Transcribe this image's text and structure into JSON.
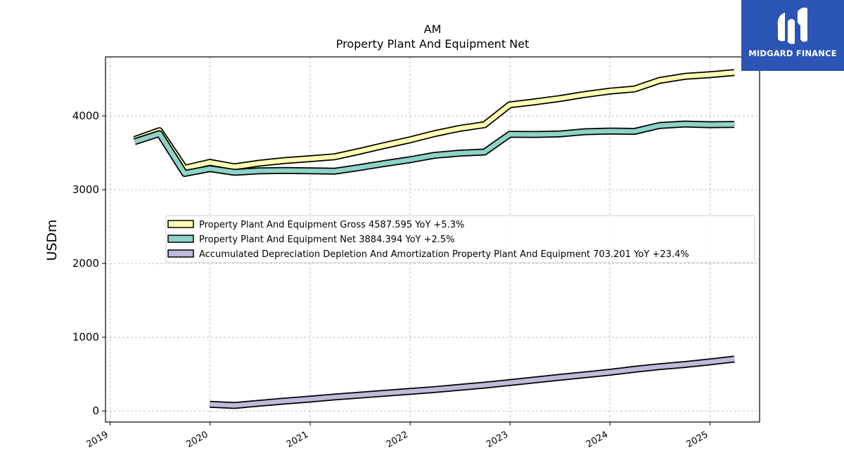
{
  "logo": {
    "text": "MIDGARD FINANCE",
    "icon": "midgard-logo-icon",
    "background": "#2b55b4"
  },
  "chart_data": {
    "type": "line",
    "title": "AM",
    "subtitle": "Property Plant And Equipment Net",
    "xlabel": "",
    "ylabel": "USDm",
    "x_ticks": [
      "2019",
      "2020",
      "2021",
      "2022",
      "2023",
      "2024",
      "2025"
    ],
    "y_ticks": [
      "0",
      "1000",
      "2000",
      "3000",
      "4000"
    ],
    "xlim": [
      "2018-12-15",
      "2025-07-01"
    ],
    "ylim": [
      -150,
      4800
    ],
    "grid": true,
    "legend_position": "center",
    "series": [
      {
        "name": "Property Plant And Equipment Gross",
        "legend_label": "Property Plant And Equipment Gross  4587.595 YoY +5.3%",
        "color": "#ffffb3",
        "points": [
          [
            "2019-03-31",
            3680
          ],
          [
            "2019-06-30",
            3800
          ],
          [
            "2019-09-30",
            3290
          ],
          [
            "2019-12-31",
            3370
          ],
          [
            "2020-03-31",
            3310
          ],
          [
            "2020-06-30",
            3360
          ],
          [
            "2020-09-30",
            3395
          ],
          [
            "2020-12-31",
            3420
          ],
          [
            "2021-03-31",
            3445
          ],
          [
            "2021-06-30",
            3520
          ],
          [
            "2021-09-30",
            3600
          ],
          [
            "2021-12-31",
            3675
          ],
          [
            "2022-03-31",
            3760
          ],
          [
            "2022-06-30",
            3830
          ],
          [
            "2022-09-30",
            3880
          ],
          [
            "2022-12-31",
            4150
          ],
          [
            "2023-03-31",
            4190
          ],
          [
            "2023-06-30",
            4235
          ],
          [
            "2023-09-30",
            4290
          ],
          [
            "2023-12-31",
            4335
          ],
          [
            "2024-03-31",
            4365
          ],
          [
            "2024-06-30",
            4480
          ],
          [
            "2024-09-30",
            4535
          ],
          [
            "2024-12-31",
            4558
          ],
          [
            "2025-03-31",
            4588
          ]
        ]
      },
      {
        "name": "Property Plant And Equipment Net",
        "legend_label": "Property Plant And Equipment Net  3884.394 YoY +2.5%",
        "color": "#8dd3c7",
        "points": [
          [
            "2019-03-31",
            3650
          ],
          [
            "2019-06-30",
            3760
          ],
          [
            "2019-09-30",
            3220
          ],
          [
            "2019-12-31",
            3285
          ],
          [
            "2020-03-31",
            3235
          ],
          [
            "2020-06-30",
            3255
          ],
          [
            "2020-09-30",
            3260
          ],
          [
            "2020-12-31",
            3255
          ],
          [
            "2021-03-31",
            3250
          ],
          [
            "2021-06-30",
            3300
          ],
          [
            "2021-09-30",
            3355
          ],
          [
            "2021-12-31",
            3405
          ],
          [
            "2022-03-31",
            3465
          ],
          [
            "2022-06-30",
            3495
          ],
          [
            "2022-09-30",
            3510
          ],
          [
            "2022-12-31",
            3750
          ],
          [
            "2023-03-31",
            3748
          ],
          [
            "2023-06-30",
            3755
          ],
          [
            "2023-09-30",
            3785
          ],
          [
            "2023-12-31",
            3795
          ],
          [
            "2024-03-31",
            3790
          ],
          [
            "2024-06-30",
            3870
          ],
          [
            "2024-09-30",
            3890
          ],
          [
            "2024-12-31",
            3880
          ],
          [
            "2025-03-31",
            3884
          ]
        ]
      },
      {
        "name": "Accumulated Depreciation Depletion And Amortization Property Plant And Equipment",
        "legend_label": "Accumulated Depreciation Depletion And Amortization Property Plant And Equipment  703.201 YoY +23.4%",
        "color": "#bebada",
        "points": [
          [
            "2019-12-31",
            90
          ],
          [
            "2020-03-31",
            75
          ],
          [
            "2020-06-30",
            105
          ],
          [
            "2020-09-30",
            135
          ],
          [
            "2020-12-31",
            160
          ],
          [
            "2021-03-31",
            190
          ],
          [
            "2021-06-30",
            215
          ],
          [
            "2021-09-30",
            240
          ],
          [
            "2021-12-31",
            265
          ],
          [
            "2022-03-31",
            290
          ],
          [
            "2022-06-30",
            320
          ],
          [
            "2022-09-30",
            350
          ],
          [
            "2022-12-31",
            385
          ],
          [
            "2023-03-31",
            420
          ],
          [
            "2023-06-30",
            455
          ],
          [
            "2023-09-30",
            490
          ],
          [
            "2023-12-31",
            525
          ],
          [
            "2024-03-31",
            565
          ],
          [
            "2024-06-30",
            600
          ],
          [
            "2024-09-30",
            630
          ],
          [
            "2024-12-31",
            665
          ],
          [
            "2025-03-31",
            703
          ]
        ]
      }
    ]
  }
}
